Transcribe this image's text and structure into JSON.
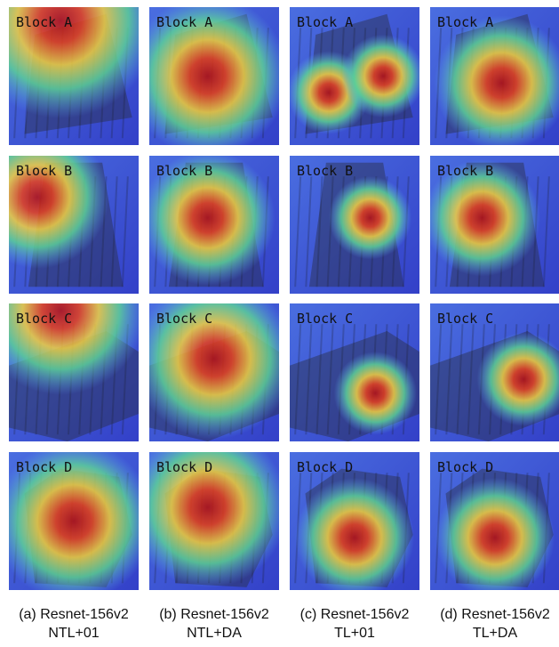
{
  "rows": [
    {
      "label": "Block A"
    },
    {
      "label": "Block B"
    },
    {
      "label": "Block C"
    },
    {
      "label": "Block D"
    }
  ],
  "columns": [
    {
      "caption": "(a) Resnet-156v2",
      "method": "NTL+01"
    },
    {
      "caption": "(b) Resnet-156v2",
      "method": "NTL+DA"
    },
    {
      "caption": "(c) Resnet-156v2",
      "method": "TL+01"
    },
    {
      "caption": "(d) Resnet-156v2",
      "method": "TL+DA"
    }
  ]
}
